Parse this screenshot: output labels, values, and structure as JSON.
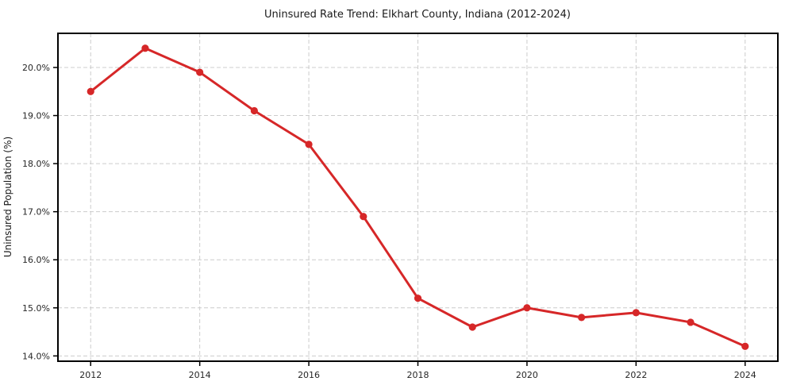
{
  "chart_data": {
    "type": "line",
    "title": "Uninsured Rate Trend: Elkhart County, Indiana (2012-2024)",
    "xlabel": "",
    "ylabel": "Uninsured Population (%)",
    "x": [
      2012,
      2013,
      2014,
      2015,
      2016,
      2017,
      2018,
      2019,
      2020,
      2021,
      2022,
      2023,
      2024
    ],
    "series": [
      {
        "name": "Uninsured Rate",
        "values": [
          19.5,
          20.4,
          19.9,
          19.1,
          18.4,
          16.9,
          15.2,
          14.6,
          15.0,
          14.8,
          14.9,
          14.7,
          14.2
        ]
      }
    ],
    "x_ticks": [
      2012,
      2014,
      2016,
      2018,
      2020,
      2022,
      2024
    ],
    "x_tick_labels": [
      "2012",
      "2014",
      "2016",
      "2018",
      "2020",
      "2022",
      "2024"
    ],
    "y_ticks": [
      14,
      15,
      16,
      17,
      18,
      19,
      20
    ],
    "y_tick_labels": [
      "14.0%",
      "15.0%",
      "16.0%",
      "17.0%",
      "18.0%",
      "19.0%",
      "20.0%"
    ],
    "xlim": [
      2011.4,
      2024.6
    ],
    "ylim": [
      13.89,
      20.71
    ],
    "grid": true,
    "legend": "none",
    "line_color": "#d62728",
    "marker": "circle",
    "grid_color": "#cccccc",
    "axis_color": "#000000",
    "text_color": "#1a1a1a",
    "background_color": "#ffffff"
  }
}
